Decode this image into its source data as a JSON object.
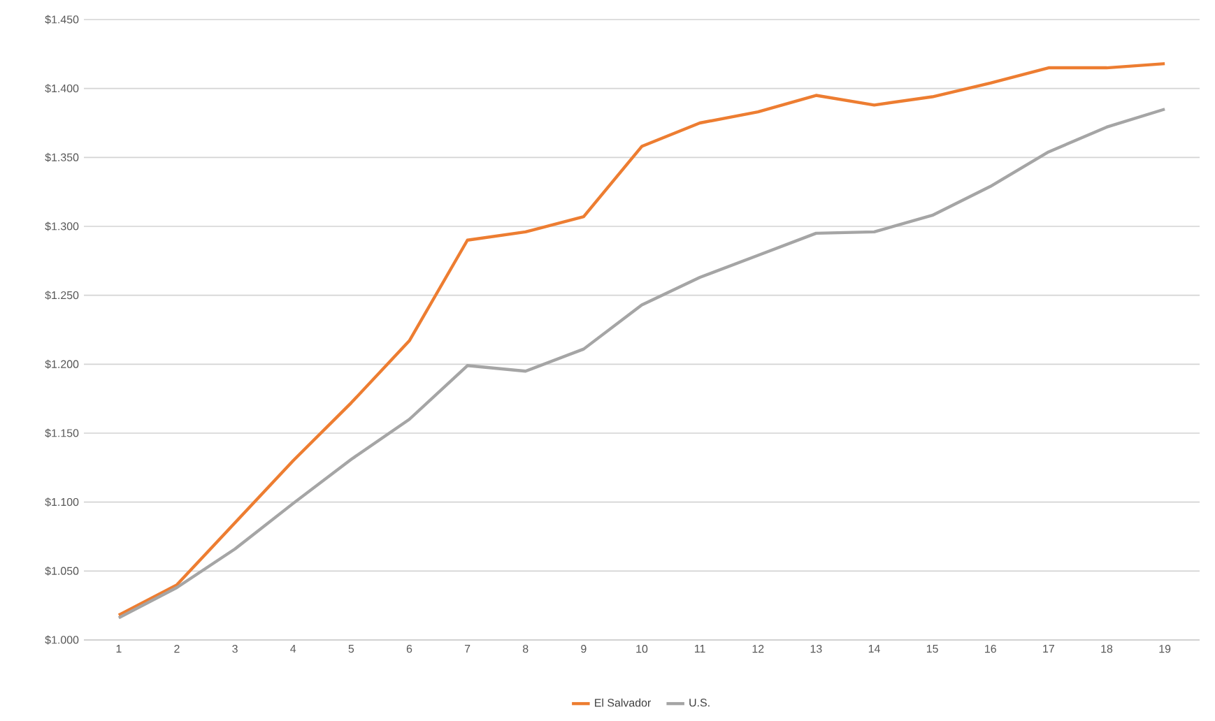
{
  "chart_data": {
    "type": "line",
    "categories": [
      "1",
      "2",
      "3",
      "4",
      "5",
      "6",
      "7",
      "8",
      "9",
      "10",
      "11",
      "12",
      "13",
      "14",
      "15",
      "16",
      "17",
      "18",
      "19"
    ],
    "series": [
      {
        "name": "El Salvador",
        "color": "#ed7d31",
        "values": [
          1.018,
          1.04,
          1.085,
          1.13,
          1.172,
          1.217,
          1.29,
          1.296,
          1.307,
          1.358,
          1.375,
          1.383,
          1.395,
          1.388,
          1.394,
          1.404,
          1.415,
          1.415,
          1.418
        ]
      },
      {
        "name": "U.S.",
        "color": "#a5a5a5",
        "values": [
          1.016,
          1.038,
          1.066,
          1.099,
          1.131,
          1.16,
          1.199,
          1.195,
          1.211,
          1.243,
          1.263,
          1.279,
          1.295,
          1.296,
          1.308,
          1.329,
          1.354,
          1.372,
          1.385
        ]
      }
    ],
    "ylim": [
      1.0,
      1.45
    ],
    "yticks": [
      {
        "value": 1.0,
        "label": "$1.000"
      },
      {
        "value": 1.05,
        "label": "$1.050"
      },
      {
        "value": 1.1,
        "label": "$1.100"
      },
      {
        "value": 1.15,
        "label": "$1.150"
      },
      {
        "value": 1.2,
        "label": "$1.200"
      },
      {
        "value": 1.25,
        "label": "$1.250"
      },
      {
        "value": 1.3,
        "label": "$1.300"
      },
      {
        "value": 1.35,
        "label": "$1.350"
      },
      {
        "value": 1.4,
        "label": "$1.400"
      },
      {
        "value": 1.45,
        "label": "$1.450"
      }
    ],
    "grid": "y",
    "legend": "bottom",
    "marker": "none",
    "line_style": "solid"
  }
}
